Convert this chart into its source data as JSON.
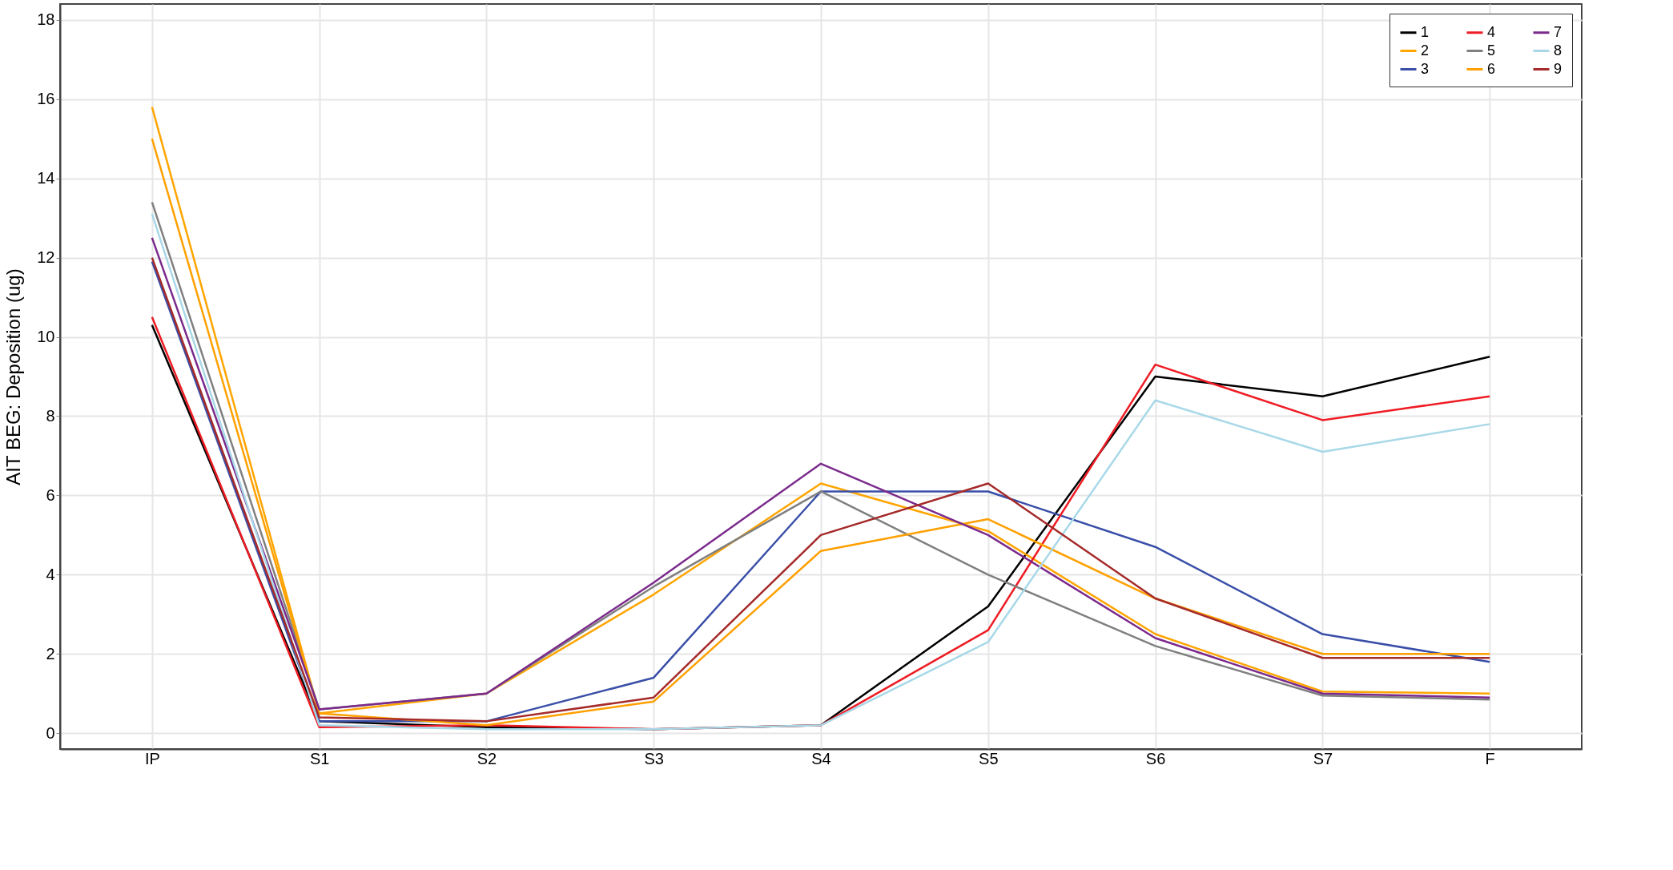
{
  "chart_data": {
    "type": "line",
    "ylabel": "AIT BEG: Deposition (ug)",
    "categories": [
      "IP",
      "S1",
      "S2",
      "S3",
      "S4",
      "S5",
      "S6",
      "S7",
      "F"
    ],
    "ylim": [
      -0.4,
      18.4
    ],
    "yticks": [
      0,
      2,
      4,
      6,
      8,
      10,
      12,
      14,
      16,
      18
    ],
    "grid": true,
    "legend": "top right",
    "line_style": "solid",
    "marker": "none",
    "series": [
      {
        "name": "1",
        "color": "#000000",
        "values": [
          10.3,
          0.3,
          0.15,
          0.1,
          0.2,
          3.2,
          9.0,
          8.5,
          9.5
        ]
      },
      {
        "name": "2",
        "color": "#ffa500",
        "values": [
          15.8,
          0.5,
          1.0,
          3.5,
          6.3,
          5.1,
          2.5,
          1.05,
          1.0
        ]
      },
      {
        "name": "3",
        "color": "#3a4fa8",
        "values": [
          11.9,
          0.3,
          0.3,
          1.4,
          6.1,
          6.1,
          4.7,
          2.5,
          1.8
        ]
      },
      {
        "name": "4",
        "color": "#ee1c24",
        "values": [
          10.5,
          0.15,
          0.2,
          0.1,
          0.2,
          2.6,
          9.3,
          7.9,
          8.5
        ]
      },
      {
        "name": "5",
        "color": "#808080",
        "values": [
          13.4,
          0.6,
          1.0,
          3.7,
          6.1,
          4.0,
          2.2,
          0.95,
          0.85
        ]
      },
      {
        "name": "6",
        "color": "#ffa000",
        "values": [
          15.0,
          0.5,
          0.2,
          0.8,
          4.6,
          5.4,
          3.4,
          2.0,
          2.0
        ]
      },
      {
        "name": "7",
        "color": "#7b2a8c",
        "values": [
          12.5,
          0.6,
          1.0,
          3.8,
          6.8,
          5.0,
          2.4,
          1.0,
          0.9
        ]
      },
      {
        "name": "8",
        "color": "#a8d8e8",
        "values": [
          13.1,
          0.2,
          0.1,
          0.1,
          0.2,
          2.3,
          8.4,
          7.1,
          7.8
        ]
      },
      {
        "name": "9",
        "color": "#a52a2a",
        "values": [
          12.0,
          0.4,
          0.3,
          0.9,
          5.0,
          6.3,
          3.4,
          1.9,
          1.9
        ]
      }
    ]
  }
}
